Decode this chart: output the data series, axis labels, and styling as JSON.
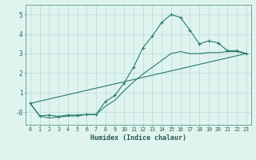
{
  "xlabel": "Humidex (Indice chaleur)",
  "background_color": "#dff4ef",
  "grid_color": "#b8ddd6",
  "line_color": "#2a7a6a",
  "xlim": [
    -0.5,
    23.5
  ],
  "ylim": [
    -0.65,
    5.5
  ],
  "xticks": [
    0,
    1,
    2,
    3,
    4,
    5,
    6,
    7,
    8,
    9,
    10,
    11,
    12,
    13,
    14,
    15,
    16,
    17,
    18,
    19,
    20,
    21,
    22,
    23
  ],
  "yticks": [
    0,
    1,
    2,
    3,
    4,
    5
  ],
  "ytick_labels": [
    "-0",
    "1",
    "2",
    "3",
    "4",
    "5"
  ],
  "series": [
    {
      "x": [
        0,
        1,
        2,
        3,
        4,
        5,
        6,
        7,
        8,
        9,
        10,
        11,
        12,
        13,
        14,
        15,
        16,
        17,
        18,
        19,
        20,
        21,
        22,
        23
      ],
      "y": [
        0.45,
        -0.2,
        -0.15,
        -0.22,
        -0.15,
        -0.15,
        -0.12,
        -0.12,
        0.55,
        0.85,
        1.5,
        2.3,
        3.3,
        3.9,
        4.6,
        5.0,
        4.85,
        4.2,
        3.5,
        3.65,
        3.55,
        3.15,
        3.15,
        3.0
      ],
      "marker": "+"
    },
    {
      "x": [
        0,
        1,
        2,
        3,
        4,
        5,
        6,
        7,
        8,
        9,
        10,
        11,
        12,
        13,
        14,
        15,
        16,
        17,
        18,
        19,
        20,
        21,
        22,
        23
      ],
      "y": [
        0.45,
        -0.2,
        -0.3,
        -0.25,
        -0.2,
        -0.2,
        -0.12,
        -0.12,
        0.3,
        0.6,
        1.1,
        1.55,
        1.95,
        2.3,
        2.65,
        3.0,
        3.1,
        3.0,
        3.0,
        3.05,
        3.05,
        3.1,
        3.1,
        3.0
      ],
      "marker": null
    },
    {
      "x": [
        0,
        23
      ],
      "y": [
        0.45,
        3.0
      ],
      "marker": null
    }
  ]
}
